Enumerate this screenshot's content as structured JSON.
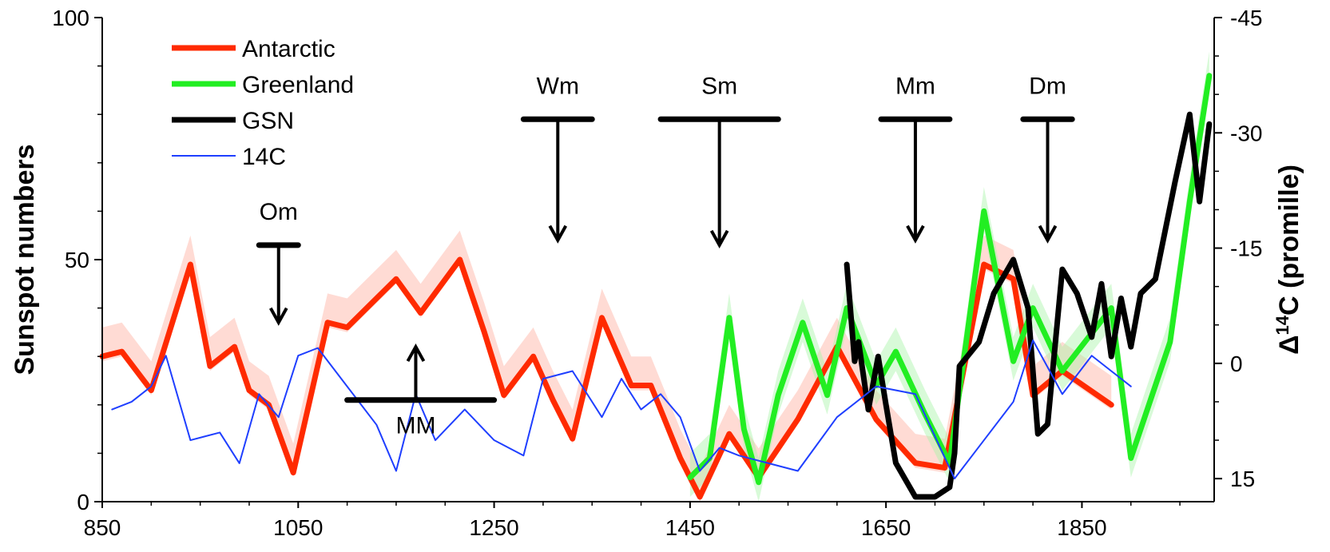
{
  "chart_data": {
    "type": "line",
    "xlabel": "",
    "ylabel": "Sunspot numbers",
    "y2label_prefix": "Δ",
    "y2label_sup": "14",
    "y2label_suffix": "C (promille)",
    "xlim": [
      850,
      1985
    ],
    "ylim": [
      0,
      100
    ],
    "y2lim": [
      -45,
      18
    ],
    "xticks": [
      "850",
      "1050",
      "1250",
      "1450",
      "1650",
      "1850"
    ],
    "yticks": [
      "0",
      "50",
      "100"
    ],
    "y2ticks": [
      "-45",
      "-30",
      "-15",
      "0",
      "15"
    ],
    "series": [
      {
        "name": "Antarctic",
        "color": "#ff2a00",
        "axis": "left",
        "x": [
          850,
          870,
          900,
          940,
          960,
          985,
          1000,
          1020,
          1045,
          1080,
          1100,
          1150,
          1175,
          1215,
          1240,
          1260,
          1290,
          1310,
          1330,
          1360,
          1390,
          1410,
          1440,
          1460,
          1490,
          1520,
          1560,
          1600,
          1640,
          1680,
          1710,
          1750,
          1780,
          1800,
          1830,
          1880
        ],
        "y": [
          30,
          31,
          23,
          49,
          28,
          32,
          23,
          20,
          6,
          37,
          36,
          46,
          39,
          50,
          35,
          22,
          30,
          21,
          13,
          38,
          24,
          24,
          9,
          1,
          14,
          5,
          17,
          32,
          17,
          8,
          7,
          49,
          46,
          22,
          27,
          20
        ]
      },
      {
        "name": "Greenland",
        "color": "#22ee22",
        "axis": "left",
        "x": [
          1450,
          1470,
          1490,
          1505,
          1520,
          1540,
          1565,
          1590,
          1610,
          1640,
          1660,
          1690,
          1715,
          1750,
          1780,
          1800,
          1830,
          1880,
          1900,
          1940,
          1960,
          1980
        ],
        "y": [
          5,
          9,
          38,
          15,
          4,
          22,
          37,
          22,
          40,
          24,
          31,
          18,
          8,
          60,
          29,
          40,
          27,
          40,
          9,
          33,
          62,
          88
        ]
      },
      {
        "name": "GSN",
        "color": "#000000",
        "axis": "left",
        "x": [
          1610,
          1618,
          1622,
          1632,
          1642,
          1650,
          1660,
          1680,
          1700,
          1715,
          1720,
          1725,
          1745,
          1760,
          1780,
          1795,
          1805,
          1815,
          1830,
          1845,
          1860,
          1870,
          1880,
          1890,
          1900,
          1910,
          1925,
          1945,
          1960,
          1970,
          1980
        ],
        "y": [
          49,
          29,
          33,
          19,
          30,
          20,
          8,
          1,
          1,
          3,
          10,
          28,
          33,
          43,
          50,
          40,
          14,
          16,
          48,
          43,
          34,
          45,
          30,
          42,
          32,
          43,
          46,
          66,
          80,
          62,
          78
        ]
      },
      {
        "name": "14C",
        "color": "#1f3fff",
        "axis": "right",
        "x": [
          860,
          880,
          900,
          915,
          940,
          970,
          990,
          1010,
          1030,
          1050,
          1070,
          1100,
          1130,
          1150,
          1170,
          1190,
          1220,
          1250,
          1280,
          1300,
          1330,
          1360,
          1380,
          1400,
          1420,
          1440,
          1460,
          1480,
          1500,
          1530,
          1560,
          1600,
          1640,
          1680,
          1720,
          1750,
          1780,
          1800,
          1830,
          1860,
          1880,
          1900
        ],
        "y": [
          6,
          5,
          3,
          -1,
          10,
          9,
          13,
          4,
          7,
          -1,
          -2,
          3,
          8,
          14,
          4,
          10,
          6,
          10,
          12,
          2,
          1,
          7,
          2,
          6,
          4,
          7,
          14,
          11,
          12,
          13,
          14,
          7,
          3,
          4,
          15,
          10,
          5,
          -3,
          4,
          -1,
          1,
          3
        ]
      }
    ],
    "legend": {
      "position": "top-left",
      "entries": [
        "Antarctic",
        "Greenland",
        "GSN",
        "14C"
      ]
    },
    "annotations": [
      {
        "label": "Om",
        "x1": 1010,
        "x2": 1050,
        "xa": 1030,
        "y": 53,
        "arrow": "down",
        "ytip": 37
      },
      {
        "label": "MM",
        "x1": 1100,
        "x2": 1250,
        "xa": 1170,
        "y": 21,
        "arrow": "up",
        "ytip": 32
      },
      {
        "label": "Wm",
        "x1": 1280,
        "x2": 1350,
        "xa": 1315,
        "y": 79,
        "arrow": "down",
        "ytip": 54
      },
      {
        "label": "Sm",
        "x1": 1420,
        "x2": 1540,
        "xa": 1480,
        "y": 79,
        "arrow": "down",
        "ytip": 53
      },
      {
        "label": "Mm",
        "x1": 1645,
        "x2": 1715,
        "xa": 1680,
        "y": 79,
        "arrow": "down",
        "ytip": 54
      },
      {
        "label": "Dm",
        "x1": 1790,
        "x2": 1840,
        "xa": 1815,
        "y": 79,
        "arrow": "down",
        "ytip": 54
      }
    ],
    "grid": false
  }
}
